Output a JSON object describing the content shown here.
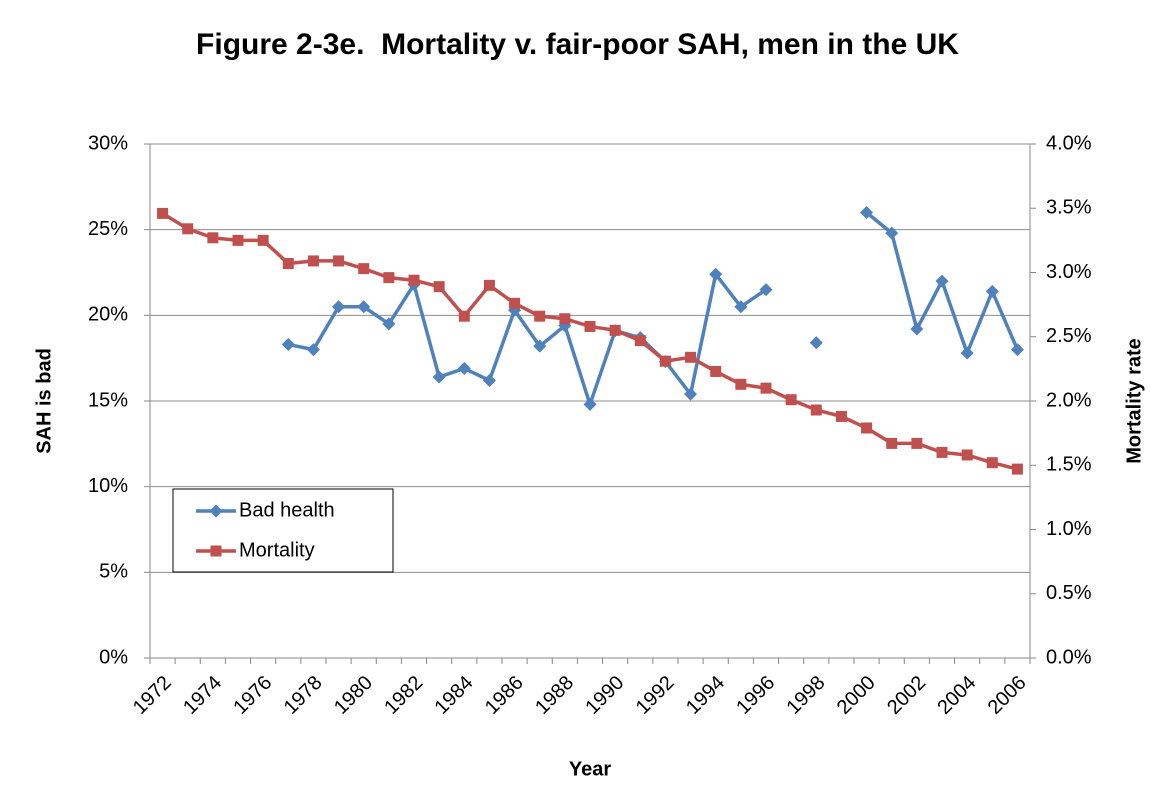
{
  "chart_data": {
    "type": "line",
    "title": "Figure 2-3e.  Mortality v. fair-poor SAH, men in the UK",
    "x_label": "Year",
    "y_label": "SAH is bad",
    "y2_label": "Mortality rate",
    "categories": [
      "1972",
      null,
      "1974",
      null,
      "1976",
      null,
      "1978",
      null,
      "1980",
      null,
      "1982",
      null,
      "1984",
      null,
      "1986",
      null,
      "1988",
      null,
      "1990",
      null,
      "1992",
      null,
      "1994",
      null,
      "1996",
      null,
      "1998",
      null,
      "2000",
      null,
      "2002",
      null,
      "2004",
      null,
      "2006"
    ],
    "series": [
      {
        "name": "Bad health",
        "color": "#4f81bd",
        "marker": "diamond",
        "values": [
          null,
          null,
          null,
          null,
          null,
          18.3,
          18.0,
          20.5,
          20.5,
          19.5,
          21.8,
          16.4,
          16.9,
          16.2,
          20.3,
          18.2,
          19.4,
          14.8,
          19.1,
          18.7,
          17.3,
          15.4,
          22.4,
          20.5,
          21.5,
          null,
          18.4,
          null,
          26.0,
          24.8,
          19.2,
          22.0,
          17.8,
          21.4,
          18.0
        ]
      },
      {
        "name": "Mortality",
        "color": "#c0504d",
        "marker": "square",
        "axis": "y2",
        "values": [
          3.46,
          3.34,
          3.27,
          3.25,
          3.25,
          3.07,
          3.09,
          3.09,
          3.03,
          2.96,
          2.94,
          2.89,
          2.66,
          2.9,
          2.76,
          2.66,
          2.64,
          2.58,
          2.55,
          2.47,
          2.31,
          2.34,
          2.23,
          2.13,
          2.1,
          2.01,
          1.93,
          1.88,
          1.79,
          1.67,
          1.67,
          1.6,
          1.58,
          1.52,
          1.47
        ]
      }
    ],
    "ylim": [
      0,
      30
    ],
    "yticks": [
      {
        "value": 0,
        "label": "0%"
      },
      {
        "value": 5,
        "label": "5%"
      },
      {
        "value": 10,
        "label": "10%"
      },
      {
        "value": 15,
        "label": "15%"
      },
      {
        "value": 20,
        "label": "20%"
      },
      {
        "value": 25,
        "label": "25%"
      },
      {
        "value": 30,
        "label": "30%"
      }
    ],
    "y2lim": [
      0,
      4
    ],
    "y2ticks": [
      {
        "value": 0,
        "label": "0.0%"
      },
      {
        "value": 0.5,
        "label": "0.5%"
      },
      {
        "value": 1,
        "label": "1.0%"
      },
      {
        "value": 1.5,
        "label": "1.5%"
      },
      {
        "value": 2,
        "label": "2.0%"
      },
      {
        "value": 2.5,
        "label": "2.5%"
      },
      {
        "value": 3,
        "label": "3.0%"
      },
      {
        "value": 3.5,
        "label": "3.5%"
      },
      {
        "value": 4,
        "label": "4.0%"
      }
    ],
    "grid": true,
    "legend": "lower left"
  }
}
